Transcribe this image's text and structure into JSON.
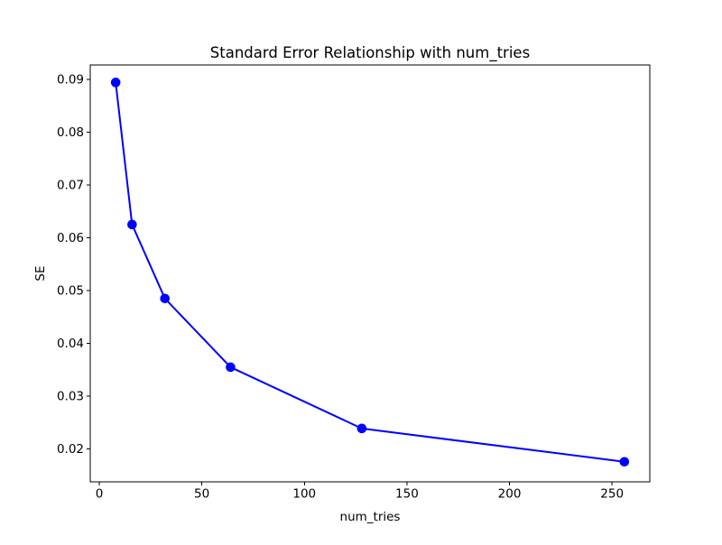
{
  "figure": {
    "background_color": "#ffffff",
    "spine_color": "#000000",
    "tick_color": "#000000"
  },
  "chart_data": {
    "type": "line",
    "title": "Standard Error Relationship with num_tries",
    "xlabel": "num_tries",
    "ylabel": "SE",
    "x": [
      8,
      16,
      32,
      64,
      128,
      256
    ],
    "y": [
      0.0894,
      0.0625,
      0.0485,
      0.0355,
      0.0239,
      0.0176
    ],
    "line_color": "#0000ff",
    "marker": "circle",
    "xticks": [
      0,
      50,
      100,
      150,
      200,
      250
    ],
    "yticks": [
      0.02,
      0.03,
      0.04,
      0.05,
      0.06,
      0.07,
      0.08,
      0.09
    ],
    "ytick_decimals": 2,
    "xlim": [
      -4.4,
      268.4
    ],
    "ylim": [
      0.0138,
      0.0927
    ],
    "grid": false,
    "legend": "none"
  }
}
